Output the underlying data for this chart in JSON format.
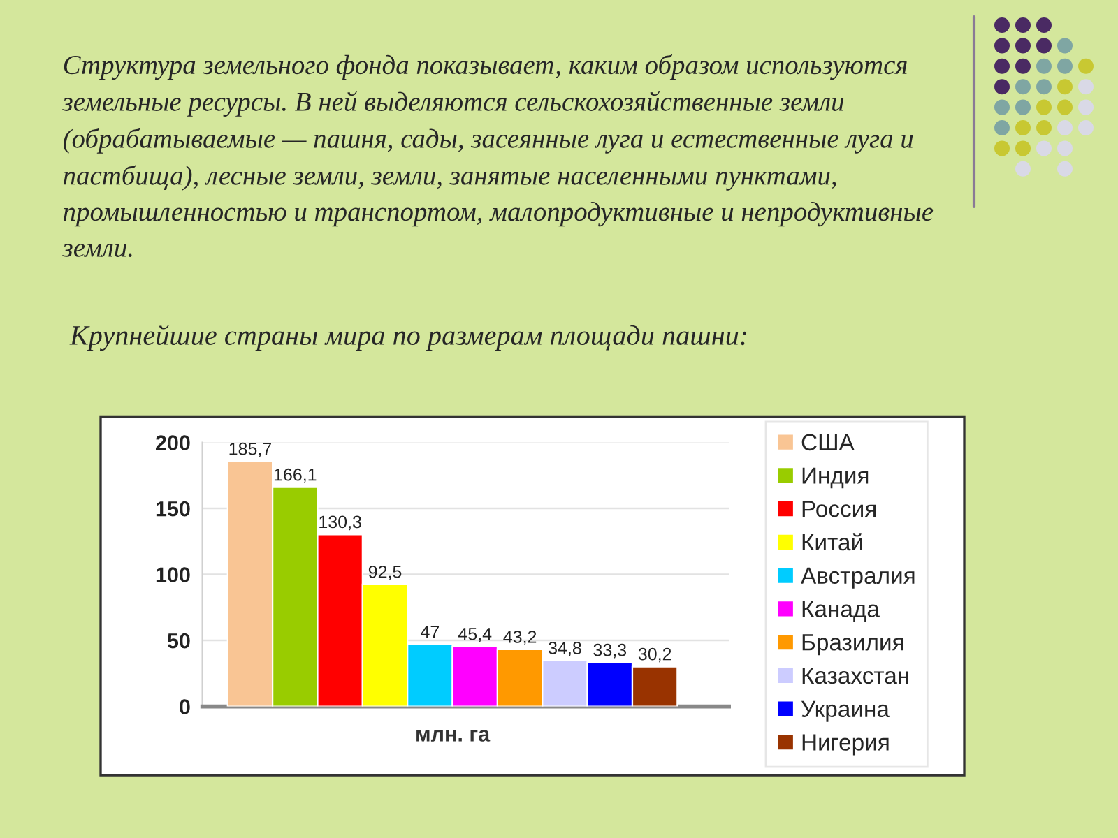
{
  "chart_data": {
    "type": "bar",
    "title": "Крупнейшие страны мира по размерам площади пашни:",
    "annotations": [
      "Структура земельного фонда показывает, каким образом используются\nземельные ресурсы. В ней выделяются сельскохозяйственные земли\n(обрабатываемые — пашня, сады, засеянные луга и естественные луга и\nпастбища), лесные земли, земли, занятые населенными пунктами,\nпромышленностью и транспортом, малопродуктивные и непродуктивные\nземли."
    ],
    "categories": [
      "млн. га"
    ],
    "series": [
      {
        "name": "США",
        "color": "#f9c594",
        "values": [
          185.7
        ],
        "value_labels": [
          "185,7"
        ]
      },
      {
        "name": "Индия",
        "color": "#99cc00",
        "values": [
          166.1
        ],
        "value_labels": [
          "166,1"
        ]
      },
      {
        "name": "Россия",
        "color": "#ff0000",
        "values": [
          130.3
        ],
        "value_labels": [
          "130,3"
        ]
      },
      {
        "name": "Китай",
        "color": "#ffff00",
        "values": [
          92.5
        ],
        "value_labels": [
          "92,5"
        ]
      },
      {
        "name": "Австралия",
        "color": "#00ccff",
        "values": [
          47
        ],
        "value_labels": [
          "47"
        ]
      },
      {
        "name": "Канада",
        "color": "#ff00ff",
        "values": [
          45.4
        ],
        "value_labels": [
          "45,4"
        ]
      },
      {
        "name": "Бразилия",
        "color": "#ff9900",
        "values": [
          43.2
        ],
        "value_labels": [
          "43,2"
        ]
      },
      {
        "name": "Казахстан",
        "color": "#ccccff",
        "values": [
          34.8
        ],
        "value_labels": [
          "34,8"
        ]
      },
      {
        "name": "Украина",
        "color": "#0000ff",
        "values": [
          33.3
        ],
        "value_labels": [
          "33,3"
        ]
      },
      {
        "name": "Нигерия",
        "color": "#993300",
        "values": [
          30.2
        ],
        "value_labels": [
          "30,2"
        ]
      }
    ],
    "ylim": [
      0,
      200
    ],
    "yticks": [
      0,
      50,
      100,
      150,
      200
    ],
    "grid": "y",
    "legend": "right"
  }
}
